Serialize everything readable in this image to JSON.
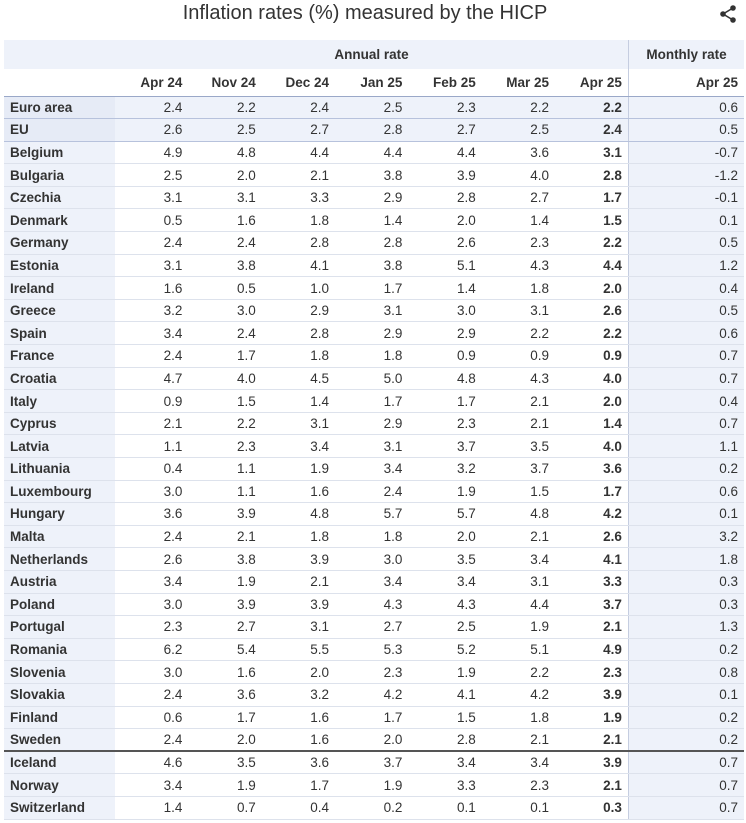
{
  "title": "Inflation rates (%) measured by the HICP",
  "share_icon": "share-icon",
  "chart_data": {
    "type": "table",
    "column_groups": [
      {
        "label": "",
        "span": 1
      },
      {
        "label": "Annual rate",
        "span": 7
      },
      {
        "label": "Monthly rate",
        "span": 1
      }
    ],
    "columns": [
      "",
      "Apr 24",
      "Nov 24",
      "Dec 24",
      "Jan 25",
      "Feb 25",
      "Mar 25",
      "Apr 25",
      "Apr 25"
    ],
    "rows": [
      {
        "country": "Euro area",
        "values": [
          "2.4",
          "2.2",
          "2.4",
          "2.5",
          "2.3",
          "2.2",
          "2.2",
          "0.6"
        ],
        "group": "aggregate"
      },
      {
        "country": "EU",
        "values": [
          "2.6",
          "2.5",
          "2.7",
          "2.8",
          "2.7",
          "2.5",
          "2.4",
          "0.5"
        ],
        "group": "aggregate"
      },
      {
        "country": "Belgium",
        "values": [
          "4.9",
          "4.8",
          "4.4",
          "4.4",
          "4.4",
          "3.6",
          "3.1",
          "-0.7"
        ],
        "group": "member"
      },
      {
        "country": "Bulgaria",
        "values": [
          "2.5",
          "2.0",
          "2.1",
          "3.8",
          "3.9",
          "4.0",
          "2.8",
          "-1.2"
        ],
        "group": "member"
      },
      {
        "country": "Czechia",
        "values": [
          "3.1",
          "3.1",
          "3.3",
          "2.9",
          "2.8",
          "2.7",
          "1.7",
          "-0.1"
        ],
        "group": "member"
      },
      {
        "country": "Denmark",
        "values": [
          "0.5",
          "1.6",
          "1.8",
          "1.4",
          "2.0",
          "1.4",
          "1.5",
          "0.1"
        ],
        "group": "member"
      },
      {
        "country": "Germany",
        "values": [
          "2.4",
          "2.4",
          "2.8",
          "2.8",
          "2.6",
          "2.3",
          "2.2",
          "0.5"
        ],
        "group": "member"
      },
      {
        "country": "Estonia",
        "values": [
          "3.1",
          "3.8",
          "4.1",
          "3.8",
          "5.1",
          "4.3",
          "4.4",
          "1.2"
        ],
        "group": "member"
      },
      {
        "country": "Ireland",
        "values": [
          "1.6",
          "0.5",
          "1.0",
          "1.7",
          "1.4",
          "1.8",
          "2.0",
          "0.4"
        ],
        "group": "member"
      },
      {
        "country": "Greece",
        "values": [
          "3.2",
          "3.0",
          "2.9",
          "3.1",
          "3.0",
          "3.1",
          "2.6",
          "0.5"
        ],
        "group": "member"
      },
      {
        "country": "Spain",
        "values": [
          "3.4",
          "2.4",
          "2.8",
          "2.9",
          "2.9",
          "2.2",
          "2.2",
          "0.6"
        ],
        "group": "member"
      },
      {
        "country": "France",
        "values": [
          "2.4",
          "1.7",
          "1.8",
          "1.8",
          "0.9",
          "0.9",
          "0.9",
          "0.7"
        ],
        "group": "member"
      },
      {
        "country": "Croatia",
        "values": [
          "4.7",
          "4.0",
          "4.5",
          "5.0",
          "4.8",
          "4.3",
          "4.0",
          "0.7"
        ],
        "group": "member"
      },
      {
        "country": "Italy",
        "values": [
          "0.9",
          "1.5",
          "1.4",
          "1.7",
          "1.7",
          "2.1",
          "2.0",
          "0.4"
        ],
        "group": "member"
      },
      {
        "country": "Cyprus",
        "values": [
          "2.1",
          "2.2",
          "3.1",
          "2.9",
          "2.3",
          "2.1",
          "1.4",
          "0.7"
        ],
        "group": "member"
      },
      {
        "country": "Latvia",
        "values": [
          "1.1",
          "2.3",
          "3.4",
          "3.1",
          "3.7",
          "3.5",
          "4.0",
          "1.1"
        ],
        "group": "member"
      },
      {
        "country": "Lithuania",
        "values": [
          "0.4",
          "1.1",
          "1.9",
          "3.4",
          "3.2",
          "3.7",
          "3.6",
          "0.2"
        ],
        "group": "member"
      },
      {
        "country": "Luxembourg",
        "values": [
          "3.0",
          "1.1",
          "1.6",
          "2.4",
          "1.9",
          "1.5",
          "1.7",
          "0.6"
        ],
        "group": "member"
      },
      {
        "country": "Hungary",
        "values": [
          "3.6",
          "3.9",
          "4.8",
          "5.7",
          "5.7",
          "4.8",
          "4.2",
          "0.1"
        ],
        "group": "member"
      },
      {
        "country": "Malta",
        "values": [
          "2.4",
          "2.1",
          "1.8",
          "1.8",
          "2.0",
          "2.1",
          "2.6",
          "3.2"
        ],
        "group": "member"
      },
      {
        "country": "Netherlands",
        "values": [
          "2.6",
          "3.8",
          "3.9",
          "3.0",
          "3.5",
          "3.4",
          "4.1",
          "1.8"
        ],
        "group": "member"
      },
      {
        "country": "Austria",
        "values": [
          "3.4",
          "1.9",
          "2.1",
          "3.4",
          "3.4",
          "3.1",
          "3.3",
          "0.3"
        ],
        "group": "member"
      },
      {
        "country": "Poland",
        "values": [
          "3.0",
          "3.9",
          "3.9",
          "4.3",
          "4.3",
          "4.4",
          "3.7",
          "0.3"
        ],
        "group": "member"
      },
      {
        "country": "Portugal",
        "values": [
          "2.3",
          "2.7",
          "3.1",
          "2.7",
          "2.5",
          "1.9",
          "2.1",
          "1.3"
        ],
        "group": "member"
      },
      {
        "country": "Romania",
        "values": [
          "6.2",
          "5.4",
          "5.5",
          "5.3",
          "5.2",
          "5.1",
          "4.9",
          "0.2"
        ],
        "group": "member"
      },
      {
        "country": "Slovenia",
        "values": [
          "3.0",
          "1.6",
          "2.0",
          "2.3",
          "1.9",
          "2.2",
          "2.3",
          "0.8"
        ],
        "group": "member"
      },
      {
        "country": "Slovakia",
        "values": [
          "2.4",
          "3.6",
          "3.2",
          "4.2",
          "4.1",
          "4.2",
          "3.9",
          "0.1"
        ],
        "group": "member"
      },
      {
        "country": "Finland",
        "values": [
          "0.6",
          "1.7",
          "1.6",
          "1.7",
          "1.5",
          "1.8",
          "1.9",
          "0.2"
        ],
        "group": "member"
      },
      {
        "country": "Sweden",
        "values": [
          "2.4",
          "2.0",
          "1.6",
          "2.0",
          "2.8",
          "2.1",
          "2.1",
          "0.2"
        ],
        "group": "member"
      },
      {
        "country": "Iceland",
        "values": [
          "4.6",
          "3.5",
          "3.6",
          "3.7",
          "3.4",
          "3.4",
          "3.9",
          "0.7"
        ],
        "group": "efta"
      },
      {
        "country": "Norway",
        "values": [
          "3.4",
          "1.9",
          "1.7",
          "1.9",
          "3.3",
          "2.3",
          "2.1",
          "0.7"
        ],
        "group": "efta"
      },
      {
        "country": "Switzerland",
        "values": [
          "1.4",
          "0.7",
          "0.4",
          "0.2",
          "0.1",
          "0.1",
          "0.3",
          "0.7"
        ],
        "group": "efta"
      }
    ]
  }
}
